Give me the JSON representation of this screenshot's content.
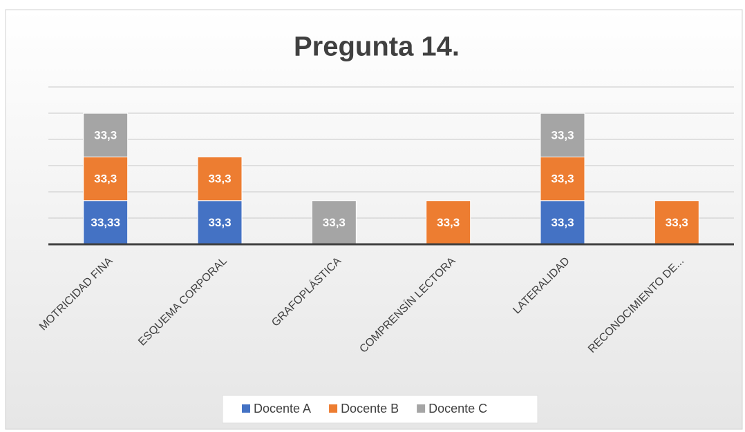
{
  "chart_data": {
    "type": "stacked_bar",
    "title": "Pregunta 14.",
    "categories": [
      "MOTRICIDAD FINA",
      "ESQUEMA CORPORAL",
      "GRAFOPLÁSTICA",
      "COMPRENSÍN LECTORA",
      "LATERALIDAD",
      "RECONOCIMIENTO DE..."
    ],
    "series": [
      {
        "name": "Docente A",
        "color": "#4472c4",
        "values": [
          33.33,
          33.3,
          null,
          null,
          33.3,
          null
        ],
        "value_labels": [
          "33,33",
          "33,3",
          null,
          null,
          "33,3",
          null
        ]
      },
      {
        "name": "Docente B",
        "color": "#ed7d31",
        "values": [
          33.3,
          33.3,
          null,
          33.3,
          33.3,
          33.3
        ],
        "value_labels": [
          "33,3",
          "33,3",
          null,
          "33,3",
          "33,3",
          "33,3"
        ]
      },
      {
        "name": "Docente C",
        "color": "#a5a5a5",
        "values": [
          33.3,
          null,
          33.3,
          null,
          33.3,
          null
        ],
        "value_labels": [
          "33,3",
          null,
          "33,3",
          null,
          "33,3",
          null
        ]
      }
    ],
    "ylim": [
      0,
      120
    ],
    "yticks": [
      0,
      20,
      40,
      60,
      80,
      100,
      120
    ],
    "grid": true,
    "legend": "bottom"
  }
}
